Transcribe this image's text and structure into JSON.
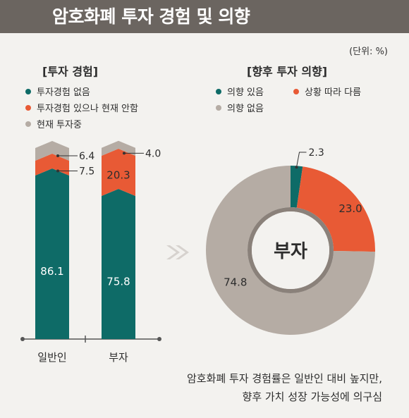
{
  "title": "암호화폐 투자 경험 및 의향",
  "unit": "(단위: %)",
  "colors": {
    "teal": "#0e6b67",
    "orange": "#e85a35",
    "gray": "#b5aca4",
    "title_bar": "#6b6560"
  },
  "left_panel": {
    "heading": "[투자 경험]",
    "legend": [
      {
        "label": "투자경험 없음",
        "color": "#0e6b67"
      },
      {
        "label": "투자경험 있으나 현재 안함",
        "color": "#e85a35"
      },
      {
        "label": "현재 투자중",
        "color": "#b5aca4"
      }
    ]
  },
  "right_panel": {
    "heading": "[향후 투자 의향]",
    "legend": [
      {
        "label": "의향 있음",
        "color": "#0e6b67"
      },
      {
        "label": "상황 따라 다름",
        "color": "#e85a35"
      },
      {
        "label": "의향 없음",
        "color": "#b5aca4"
      }
    ]
  },
  "caption": {
    "line1": "암호화폐 투자 경험률은 일반인 대비 높지만,",
    "line2": "향후 가치 성장 가능성에 의구심"
  },
  "chart_data": [
    {
      "type": "bar",
      "stacked": true,
      "categories": [
        "일반인",
        "부자"
      ],
      "series": [
        {
          "name": "투자경험 없음",
          "values": [
            86.1,
            75.8
          ]
        },
        {
          "name": "투자경험 있으나 현재 안함",
          "values": [
            7.5,
            20.3
          ]
        },
        {
          "name": "현재 투자중",
          "values": [
            6.4,
            4.0
          ]
        }
      ],
      "value_labels": [
        [
          "86.1",
          "75.8"
        ],
        [
          "7.5",
          "20.3"
        ],
        [
          "6.4",
          "4.0"
        ]
      ]
    },
    {
      "type": "pie",
      "donut": true,
      "center_label": "부자",
      "slices": [
        {
          "name": "의향 있음",
          "value": 2.3,
          "label": "2.3"
        },
        {
          "name": "상황 따라 다름",
          "value": 23.0,
          "label": "23.0"
        },
        {
          "name": "의향 없음",
          "value": 74.8,
          "label": "74.8"
        }
      ]
    }
  ]
}
